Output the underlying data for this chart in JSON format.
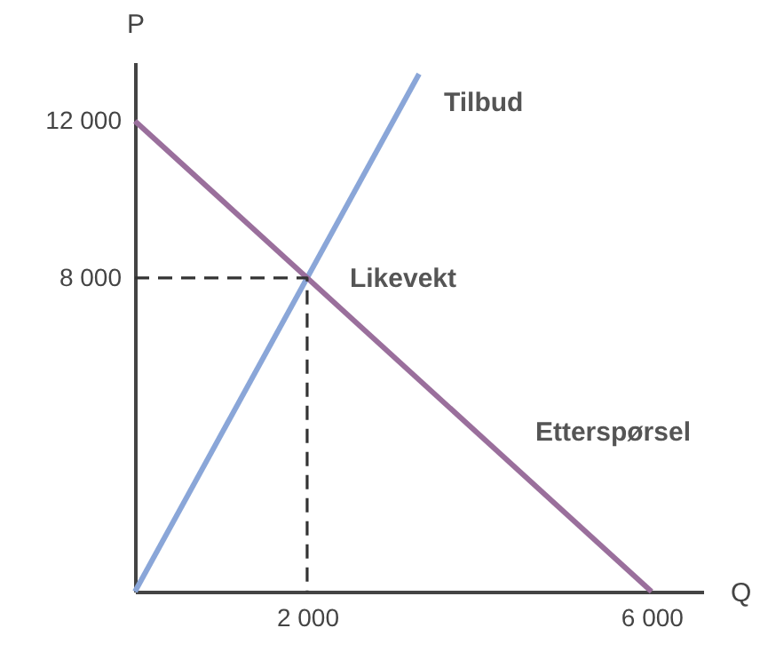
{
  "chart_data": {
    "type": "line",
    "xlabel": "Q",
    "ylabel": "P",
    "xlim": [
      0,
      6600
    ],
    "ylim": [
      0,
      13500
    ],
    "xticks": [
      {
        "value": 2000,
        "label": "2 000"
      },
      {
        "value": 6000,
        "label": "6 000"
      }
    ],
    "yticks": [
      {
        "value": 8000,
        "label": "8 000"
      },
      {
        "value": 12000,
        "label": "12 000"
      }
    ],
    "grid": false,
    "marker": "none",
    "series": [
      {
        "name": "Tilbud",
        "color": "#8aa6d8",
        "x": [
          0,
          3300
        ],
        "values": [
          0,
          13200
        ]
      },
      {
        "name": "Etterspørsel",
        "color": "#9a6f9c",
        "x": [
          0,
          6000
        ],
        "values": [
          12000,
          0
        ]
      },
      {
        "color": "#333333",
        "x": [
          0,
          2000,
          2000
        ],
        "values": [
          8000,
          8000,
          0
        ],
        "line_style": "dashed"
      }
    ],
    "annotations": [
      {
        "text": "Likevekt",
        "x": 2000,
        "y": 8000
      }
    ]
  }
}
